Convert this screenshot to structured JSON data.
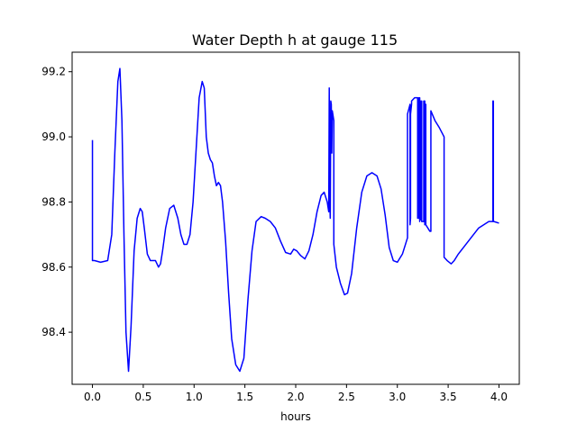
{
  "chart_data": {
    "type": "line",
    "title": "Water Depth h at gauge 115",
    "xlabel": "hours",
    "ylabel": "",
    "xlim": [
      -0.2,
      4.2
    ],
    "ylim": [
      98.24,
      99.26
    ],
    "x_ticks": [
      0.0,
      0.5,
      1.0,
      1.5,
      2.0,
      2.5,
      3.0,
      3.5,
      4.0
    ],
    "x_tick_labels": [
      "0.0",
      "0.5",
      "1.0",
      "1.5",
      "2.0",
      "2.5",
      "3.0",
      "3.5",
      "4.0"
    ],
    "y_ticks": [
      98.4,
      98.6,
      98.8,
      99.0,
      99.2
    ],
    "y_tick_labels": [
      "98.4",
      "98.6",
      "98.8",
      "99.0",
      "99.2"
    ],
    "grid": false,
    "legend": "none",
    "series": [
      {
        "color": "#0000ff",
        "x": [
          0.0,
          0.0,
          0.02,
          0.08,
          0.15,
          0.19,
          0.22,
          0.25,
          0.27,
          0.29,
          0.31,
          0.33,
          0.355,
          0.38,
          0.41,
          0.44,
          0.47,
          0.49,
          0.51,
          0.54,
          0.57,
          0.6,
          0.62,
          0.65,
          0.67,
          0.69,
          0.72,
          0.76,
          0.8,
          0.84,
          0.87,
          0.9,
          0.93,
          0.96,
          0.99,
          1.02,
          1.05,
          1.08,
          1.1,
          1.12,
          1.14,
          1.16,
          1.18,
          1.2,
          1.22,
          1.24,
          1.26,
          1.28,
          1.31,
          1.34,
          1.37,
          1.41,
          1.45,
          1.49,
          1.53,
          1.57,
          1.61,
          1.66,
          1.7,
          1.75,
          1.8,
          1.85,
          1.9,
          1.95,
          1.98,
          2.01,
          2.05,
          2.09,
          2.13,
          2.17,
          2.21,
          2.25,
          2.28,
          2.31,
          2.325,
          2.33,
          2.335,
          2.34,
          2.345,
          2.35,
          2.355,
          2.36,
          2.365,
          2.375,
          2.375,
          2.4,
          2.44,
          2.48,
          2.51,
          2.55,
          2.6,
          2.65,
          2.7,
          2.75,
          2.8,
          2.84,
          2.88,
          2.92,
          2.96,
          3.0,
          3.05,
          3.08,
          3.1,
          3.1,
          3.125,
          3.125,
          3.13,
          3.13,
          3.14,
          3.14,
          3.17,
          3.2,
          3.2,
          3.21,
          3.21,
          3.22,
          3.22,
          3.23,
          3.23,
          3.24,
          3.24,
          3.26,
          3.26,
          3.27,
          3.27,
          3.28,
          3.28,
          3.32,
          3.33,
          3.33,
          3.37,
          3.41,
          3.46,
          3.46,
          3.49,
          3.53,
          3.56,
          3.6,
          3.65,
          3.7,
          3.75,
          3.8,
          3.85,
          3.9,
          3.94,
          3.94,
          3.945,
          3.945,
          3.95,
          4.0
        ],
        "y": [
          98.99,
          98.62,
          98.62,
          98.615,
          98.62,
          98.7,
          98.95,
          99.17,
          99.21,
          99.05,
          98.7,
          98.4,
          98.28,
          98.42,
          98.65,
          98.75,
          98.78,
          98.77,
          98.72,
          98.64,
          98.62,
          98.62,
          98.62,
          98.6,
          98.61,
          98.65,
          98.72,
          98.78,
          98.79,
          98.75,
          98.7,
          98.67,
          98.67,
          98.7,
          98.8,
          98.96,
          99.12,
          99.17,
          99.15,
          99.0,
          98.95,
          98.93,
          98.92,
          98.88,
          98.85,
          98.86,
          98.85,
          98.8,
          98.68,
          98.52,
          98.38,
          98.3,
          98.28,
          98.32,
          98.5,
          98.65,
          98.74,
          98.755,
          98.75,
          98.74,
          98.72,
          98.68,
          98.645,
          98.64,
          98.655,
          98.65,
          98.635,
          98.625,
          98.65,
          98.7,
          98.77,
          98.82,
          98.83,
          98.8,
          98.77,
          99.15,
          98.8,
          98.75,
          99.11,
          99.1,
          98.95,
          99.08,
          99.07,
          99.05,
          98.67,
          98.6,
          98.55,
          98.515,
          98.52,
          98.58,
          98.72,
          98.83,
          98.88,
          98.89,
          98.88,
          98.84,
          98.76,
          98.66,
          98.62,
          98.615,
          98.64,
          98.67,
          98.69,
          99.07,
          99.1,
          98.73,
          98.75,
          99.07,
          99.1,
          99.11,
          99.12,
          99.12,
          98.75,
          99.12,
          98.75,
          99.12,
          98.74,
          99.11,
          98.745,
          99.11,
          98.74,
          98.74,
          99.11,
          99.11,
          98.73,
          99.1,
          98.73,
          98.71,
          98.71,
          99.08,
          99.05,
          99.03,
          99.0,
          98.63,
          98.62,
          98.61,
          98.62,
          98.64,
          98.66,
          98.68,
          98.7,
          98.72,
          98.73,
          98.74,
          98.74,
          99.11,
          99.11,
          98.74,
          98.74,
          98.735
        ]
      }
    ]
  }
}
